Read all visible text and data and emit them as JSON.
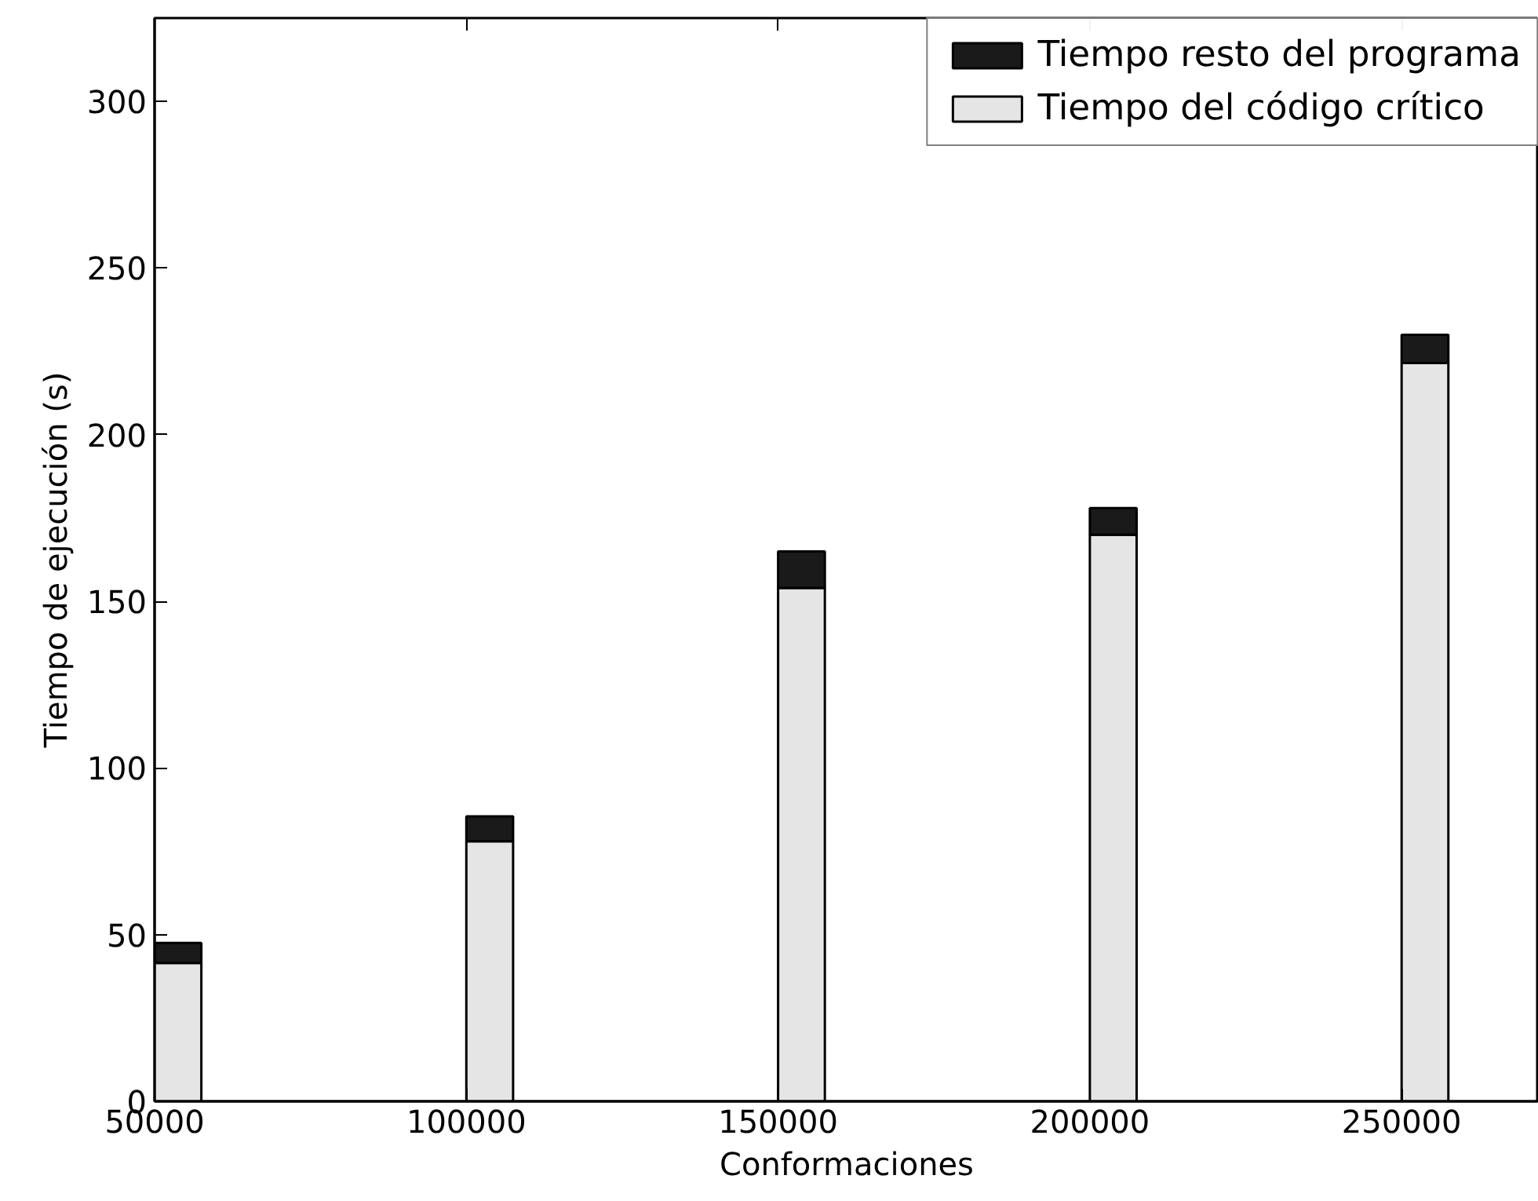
{
  "chart_data": {
    "type": "bar",
    "stacked": true,
    "xlabel": "Conformaciones",
    "ylabel": "Tiempo de ejecución (s)",
    "x": [
      50000,
      100000,
      150000,
      200000,
      250000
    ],
    "series": [
      {
        "name": "Tiempo del código crítico",
        "color": "#e5e5e5",
        "values": [
          41.5,
          78,
          154,
          170,
          221.5
        ]
      },
      {
        "name": "Tiempo resto del programa",
        "color": "#1a1a1a",
        "values": [
          6,
          7.5,
          11,
          8,
          8.5
        ]
      }
    ],
    "xlim": [
      50000,
      272000
    ],
    "xticks": [
      50000,
      100000,
      150000,
      200000,
      250000
    ],
    "ylim": [
      0,
      325
    ],
    "yticks": [
      0,
      50,
      100,
      150,
      200,
      250,
      300
    ],
    "legend": "top right",
    "grid": false
  }
}
